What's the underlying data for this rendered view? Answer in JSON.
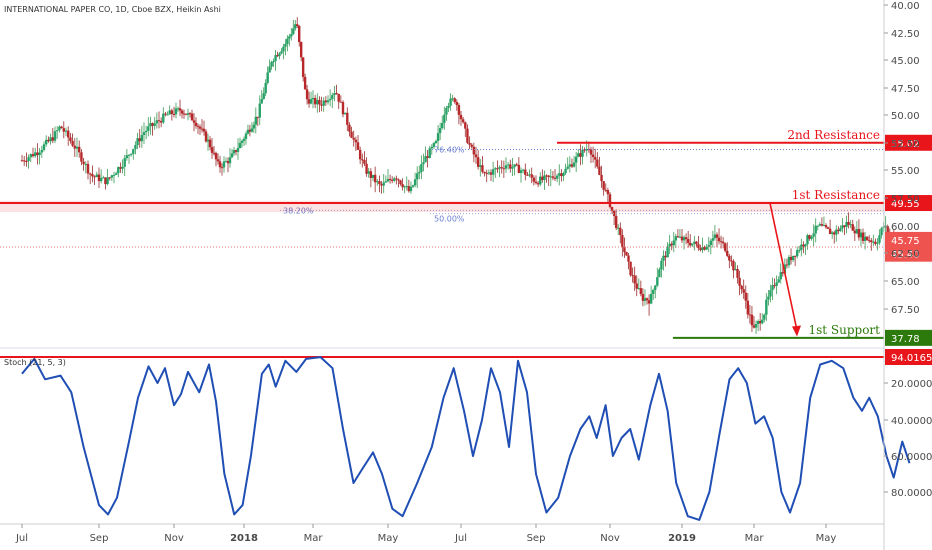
{
  "header": {
    "title": "INTERNATIONAL PAPER CO, 1D, Cboe BZX, Heikin Ashi"
  },
  "chart_data": [
    {
      "type": "candlestick",
      "title": "INTERNATIONAL PAPER CO, 1D, Cboe BZX, Heikin Ashi",
      "x_tick_labels": [
        "Jul",
        "Sep",
        "Nov",
        "2018",
        "Mar",
        "May",
        "Jul",
        "Sep",
        "Nov",
        "2019",
        "Mar",
        "May"
      ],
      "y_tick_labels": [
        "40.00",
        "42.50",
        "45.00",
        "47.50",
        "50.00",
        "52.50",
        "55.00",
        "57.50",
        "60.00",
        "62.50",
        "65.00",
        "67.50"
      ],
      "ylim": [
        37.5,
        67.5
      ],
      "price_path": [
        {
          "t": 0.0,
          "v": 53.4
        },
        {
          "t": 1.0,
          "v": 54.2
        },
        {
          "t": 2.0,
          "v": 55.5
        },
        {
          "t": 2.5,
          "v": 56.5
        },
        {
          "t": 3.5,
          "v": 54.5
        },
        {
          "t": 4.5,
          "v": 52.0
        },
        {
          "t": 5.5,
          "v": 51.5
        },
        {
          "t": 6.5,
          "v": 53.0
        },
        {
          "t": 8.0,
          "v": 56.0
        },
        {
          "t": 9.5,
          "v": 57.5
        },
        {
          "t": 10.5,
          "v": 58.0
        },
        {
          "t": 11.5,
          "v": 57.0
        },
        {
          "t": 12.5,
          "v": 55.0
        },
        {
          "t": 13.2,
          "v": 52.8
        },
        {
          "t": 14.0,
          "v": 53.5
        },
        {
          "t": 15.0,
          "v": 55.5
        },
        {
          "t": 16.0,
          "v": 57.5
        },
        {
          "t": 17.0,
          "v": 62.5
        },
        {
          "t": 18.0,
          "v": 64.0
        },
        {
          "t": 18.8,
          "v": 66.0
        },
        {
          "t": 19.5,
          "v": 59.0
        },
        {
          "t": 20.5,
          "v": 58.5
        },
        {
          "t": 21.5,
          "v": 59.8
        },
        {
          "t": 22.5,
          "v": 56.0
        },
        {
          "t": 23.5,
          "v": 52.5
        },
        {
          "t": 24.5,
          "v": 51.0
        },
        {
          "t": 25.5,
          "v": 52.0
        },
        {
          "t": 26.5,
          "v": 50.5
        },
        {
          "t": 27.5,
          "v": 53.5
        },
        {
          "t": 28.3,
          "v": 55.0
        },
        {
          "t": 29.0,
          "v": 58.5
        },
        {
          "t": 29.6,
          "v": 59.0
        },
        {
          "t": 30.5,
          "v": 55.0
        },
        {
          "t": 31.5,
          "v": 52.0
        },
        {
          "t": 33.0,
          "v": 53.0
        },
        {
          "t": 34.0,
          "v": 52.5
        },
        {
          "t": 35.0,
          "v": 51.5
        },
        {
          "t": 36.0,
          "v": 51.8
        },
        {
          "t": 37.0,
          "v": 52.5
        },
        {
          "t": 38.0,
          "v": 54.0
        },
        {
          "t": 38.6,
          "v": 54.7
        },
        {
          "t": 39.3,
          "v": 52.0
        },
        {
          "t": 40.0,
          "v": 49.5
        },
        {
          "t": 40.8,
          "v": 46.0
        },
        {
          "t": 41.5,
          "v": 43.0
        },
        {
          "t": 42.2,
          "v": 41.0
        },
        {
          "t": 42.8,
          "v": 40.8
        },
        {
          "t": 43.5,
          "v": 44.0
        },
        {
          "t": 44.5,
          "v": 46.5
        },
        {
          "t": 45.5,
          "v": 46.0
        },
        {
          "t": 46.5,
          "v": 45.5
        },
        {
          "t": 47.3,
          "v": 46.5
        },
        {
          "t": 48.0,
          "v": 45.5
        },
        {
          "t": 48.8,
          "v": 43.0
        },
        {
          "t": 49.5,
          "v": 40.5
        },
        {
          "t": 50.0,
          "v": 38.5
        },
        {
          "t": 50.7,
          "v": 40.0
        },
        {
          "t": 51.5,
          "v": 42.5
        },
        {
          "t": 52.5,
          "v": 44.5
        },
        {
          "t": 53.5,
          "v": 46.0
        },
        {
          "t": 54.5,
          "v": 47.5
        },
        {
          "t": 55.5,
          "v": 46.8
        },
        {
          "t": 56.5,
          "v": 47.8
        },
        {
          "t": 57.5,
          "v": 46.5
        },
        {
          "t": 58.5,
          "v": 46.0
        },
        {
          "t": 59.0,
          "v": 47.5
        },
        {
          "t": 59.6,
          "v": 46.5
        },
        {
          "t": 60.0,
          "v": 45.6
        }
      ],
      "levels": [
        {
          "name": "2nd Resistance",
          "value": 55.02,
          "label": "55.02",
          "color": "#e8151b"
        },
        {
          "name": "1st Resistance",
          "value": 49.55,
          "label": "49.55",
          "color": "#e8151b"
        },
        {
          "name": "1st Support",
          "value": 37.78,
          "label": "37.78",
          "color": "#2b7a0b"
        }
      ],
      "price_tags": [
        {
          "value": 45.75,
          "label": "45.75",
          "color": "#ef5350"
        },
        {
          "value": 45.4,
          "label": "45.40",
          "color": "#ef5350"
        }
      ],
      "fib_labels": [
        "76.40%",
        "38.20%",
        "50.00%"
      ],
      "projection_arrow": {
        "from": {
          "t": 59.2,
          "v": 49.55
        },
        "to": {
          "t": 61.3,
          "v": 37.9
        },
        "color": "#e8151b"
      }
    },
    {
      "type": "line",
      "title": "Stoch (21, 5, 3)",
      "y_tick_labels": [
        "20.0000",
        "40.0000",
        "60.0000",
        "80.0000"
      ],
      "ylim": [
        5,
        98
      ],
      "level": {
        "value": 94.0165,
        "label": "94.0165",
        "color": "#e8151b"
      },
      "series_color": "#1f4eb4",
      "points": [
        {
          "t": 0.0,
          "v": 85
        },
        {
          "t": 0.8,
          "v": 93
        },
        {
          "t": 1.5,
          "v": 82
        },
        {
          "t": 2.5,
          "v": 84
        },
        {
          "t": 3.2,
          "v": 75
        },
        {
          "t": 4.0,
          "v": 45
        },
        {
          "t": 5.0,
          "v": 14
        },
        {
          "t": 5.6,
          "v": 9
        },
        {
          "t": 6.2,
          "v": 18
        },
        {
          "t": 7.0,
          "v": 48
        },
        {
          "t": 7.6,
          "v": 72
        },
        {
          "t": 8.3,
          "v": 89
        },
        {
          "t": 8.9,
          "v": 80
        },
        {
          "t": 9.4,
          "v": 88
        },
        {
          "t": 10.0,
          "v": 68
        },
        {
          "t": 10.5,
          "v": 74
        },
        {
          "t": 11.0,
          "v": 86
        },
        {
          "t": 11.8,
          "v": 75
        },
        {
          "t": 12.5,
          "v": 90
        },
        {
          "t": 13.0,
          "v": 70
        },
        {
          "t": 13.6,
          "v": 30
        },
        {
          "t": 14.3,
          "v": 9
        },
        {
          "t": 14.9,
          "v": 14
        },
        {
          "t": 15.5,
          "v": 40
        },
        {
          "t": 16.3,
          "v": 85
        },
        {
          "t": 16.8,
          "v": 90
        },
        {
          "t": 17.3,
          "v": 78
        },
        {
          "t": 18.0,
          "v": 92
        },
        {
          "t": 18.8,
          "v": 86
        },
        {
          "t": 19.5,
          "v": 93
        },
        {
          "t": 20.5,
          "v": 94
        },
        {
          "t": 21.3,
          "v": 88
        },
        {
          "t": 22.0,
          "v": 55
        },
        {
          "t": 22.7,
          "v": 25
        },
        {
          "t": 23.3,
          "v": 33
        },
        {
          "t": 24.0,
          "v": 42
        },
        {
          "t": 24.6,
          "v": 30
        },
        {
          "t": 25.3,
          "v": 12
        },
        {
          "t": 26.0,
          "v": 8
        },
        {
          "t": 27.0,
          "v": 25
        },
        {
          "t": 28.0,
          "v": 45
        },
        {
          "t": 28.8,
          "v": 72
        },
        {
          "t": 29.5,
          "v": 88
        },
        {
          "t": 30.2,
          "v": 65
        },
        {
          "t": 30.8,
          "v": 40
        },
        {
          "t": 31.4,
          "v": 60
        },
        {
          "t": 32.0,
          "v": 88
        },
        {
          "t": 32.6,
          "v": 75
        },
        {
          "t": 33.2,
          "v": 45
        },
        {
          "t": 33.8,
          "v": 92
        },
        {
          "t": 34.4,
          "v": 75
        },
        {
          "t": 35.0,
          "v": 30
        },
        {
          "t": 35.7,
          "v": 10
        },
        {
          "t": 36.5,
          "v": 18
        },
        {
          "t": 37.3,
          "v": 40
        },
        {
          "t": 38.0,
          "v": 55
        },
        {
          "t": 38.6,
          "v": 62
        },
        {
          "t": 39.1,
          "v": 50
        },
        {
          "t": 39.7,
          "v": 68
        },
        {
          "t": 40.2,
          "v": 40
        },
        {
          "t": 40.8,
          "v": 50
        },
        {
          "t": 41.4,
          "v": 55
        },
        {
          "t": 42.0,
          "v": 38
        },
        {
          "t": 42.8,
          "v": 68
        },
        {
          "t": 43.4,
          "v": 85
        },
        {
          "t": 44.0,
          "v": 65
        },
        {
          "t": 44.6,
          "v": 25
        },
        {
          "t": 45.4,
          "v": 8
        },
        {
          "t": 46.2,
          "v": 6
        },
        {
          "t": 46.9,
          "v": 20
        },
        {
          "t": 47.6,
          "v": 52
        },
        {
          "t": 48.3,
          "v": 82
        },
        {
          "t": 48.9,
          "v": 88
        },
        {
          "t": 49.5,
          "v": 80
        },
        {
          "t": 50.1,
          "v": 58
        },
        {
          "t": 50.7,
          "v": 62
        },
        {
          "t": 51.3,
          "v": 50
        },
        {
          "t": 51.9,
          "v": 20
        },
        {
          "t": 52.5,
          "v": 10
        },
        {
          "t": 53.2,
          "v": 25
        },
        {
          "t": 53.9,
          "v": 72
        },
        {
          "t": 54.6,
          "v": 90
        },
        {
          "t": 55.4,
          "v": 92
        },
        {
          "t": 56.2,
          "v": 88
        },
        {
          "t": 56.9,
          "v": 72
        },
        {
          "t": 57.5,
          "v": 65
        },
        {
          "t": 58.0,
          "v": 72
        },
        {
          "t": 58.6,
          "v": 62
        },
        {
          "t": 59.2,
          "v": 40
        },
        {
          "t": 59.7,
          "v": 28
        },
        {
          "t": 60.3,
          "v": 48
        },
        {
          "t": 60.8,
          "v": 36
        }
      ]
    }
  ],
  "price_axis": {
    "levels": [
      {
        "label": "2nd Resistance",
        "value": "55.02"
      },
      {
        "label": "1st Resistance",
        "value": "49.55"
      },
      {
        "label": "1st Support",
        "value": "37.78"
      }
    ]
  }
}
